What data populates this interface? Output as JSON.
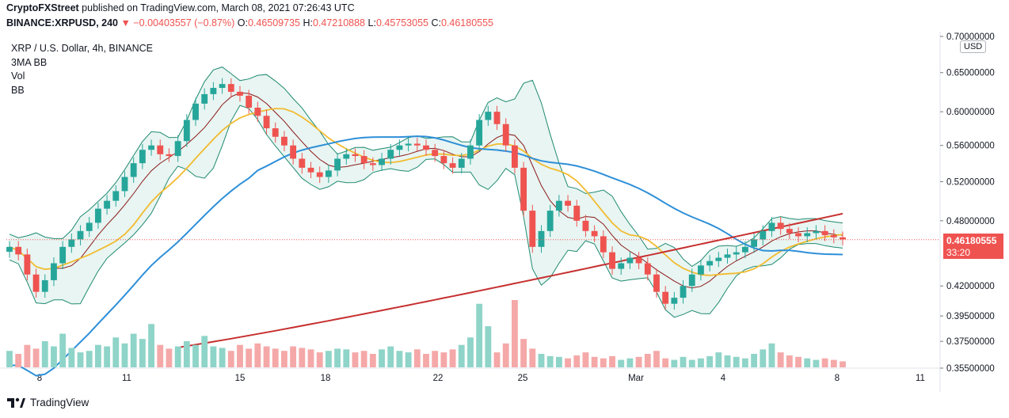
{
  "header": {
    "author": "CryptoFXStreet",
    "published_text": "published on TradingView.com, March 08, 2021 07:26:43 UTC",
    "symbol": "BINANCE:XRPUSD, 240",
    "change_arrow": "▼",
    "change": "−0.00403557 (−0.87%)",
    "o_label": "O:",
    "o_value": "0.46509735",
    "h_label": "H:",
    "h_value": "0.47210888",
    "l_label": "L:",
    "l_value": "0.45753055",
    "c_label": "C:",
    "c_value": "0.46180555"
  },
  "legend": {
    "title": "XRP / U.S. Dollar, 4h, BINANCE",
    "items": [
      "3MA BB",
      "Vol",
      "BB"
    ]
  },
  "price_axis": {
    "currency_button": "USD",
    "last_price": "0.46180555",
    "countdown": "33:20"
  },
  "branding": {
    "name": "TradingView"
  },
  "colors": {
    "up": "#26a69a",
    "down": "#ef5350",
    "bb_basis": "#8b1a1a",
    "bb_bands": "#1f8a70",
    "bb_fill": "#e8f5f2",
    "ma_yellow": "#f2bb30",
    "ma_blue": "#2e8fd8",
    "ma_red": "#c62f2f",
    "vol_up": "#8fd4c8",
    "vol_down": "#f5a8a8"
  },
  "chart_data": {
    "type": "candlestick",
    "title": "XRP / U.S. Dollar, 4h, BINANCE",
    "x_tick_labels": [
      "8",
      "11",
      "15",
      "18",
      "22",
      "25",
      "Mar",
      "4",
      "8",
      "11"
    ],
    "y_tick_labels": [
      "0.70000000",
      "0.65000000",
      "0.60000000",
      "0.56000000",
      "0.52000000",
      "0.48000000",
      "0.42000000",
      "0.39500000",
      "0.37500000",
      "0.35500000"
    ],
    "y_scale": "log",
    "y_axis_labels": [
      {
        "label": "0.70000000",
        "value": 0.7
      },
      {
        "label": "0.65000000",
        "value": 0.65
      },
      {
        "label": "0.60000000",
        "value": 0.6
      },
      {
        "label": "0.56000000",
        "value": 0.56
      },
      {
        "label": "0.52000000",
        "value": 0.52
      },
      {
        "label": "0.48000000",
        "value": 0.48
      },
      {
        "label": "0.42000000",
        "value": 0.42
      },
      {
        "label": "0.39500000",
        "value": 0.395
      },
      {
        "label": "0.37500000",
        "value": 0.375
      },
      {
        "label": "0.35500000",
        "value": 0.355
      }
    ],
    "last_price": 0.4618,
    "close_series_approx": [
      0.455,
      0.448,
      0.43,
      0.415,
      0.425,
      0.44,
      0.455,
      0.462,
      0.47,
      0.478,
      0.492,
      0.5,
      0.51,
      0.525,
      0.54,
      0.555,
      0.56,
      0.55,
      0.548,
      0.565,
      0.59,
      0.61,
      0.622,
      0.63,
      0.635,
      0.625,
      0.62,
      0.605,
      0.595,
      0.58,
      0.57,
      0.56,
      0.545,
      0.535,
      0.53,
      0.525,
      0.532,
      0.545,
      0.55,
      0.548,
      0.54,
      0.538,
      0.545,
      0.555,
      0.56,
      0.562,
      0.56,
      0.555,
      0.548,
      0.54,
      0.535,
      0.545,
      0.56,
      0.59,
      0.6,
      0.585,
      0.56,
      0.535,
      0.49,
      0.455,
      0.47,
      0.49,
      0.5,
      0.495,
      0.48,
      0.47,
      0.465,
      0.45,
      0.435,
      0.44,
      0.445,
      0.44,
      0.43,
      0.415,
      0.405,
      0.41,
      0.42,
      0.43,
      0.438,
      0.442,
      0.445,
      0.448,
      0.45,
      0.455,
      0.462,
      0.47,
      0.478,
      0.472,
      0.468,
      0.465,
      0.468,
      0.47,
      0.466,
      0.464,
      0.462
    ],
    "volume_series_approx": [
      22,
      18,
      30,
      25,
      35,
      28,
      45,
      26,
      20,
      22,
      30,
      28,
      40,
      32,
      45,
      38,
      58,
      30,
      25,
      28,
      35,
      30,
      42,
      28,
      26,
      22,
      30,
      25,
      32,
      28,
      25,
      22,
      28,
      26,
      24,
      20,
      22,
      25,
      24,
      20,
      22,
      18,
      24,
      28,
      22,
      20,
      24,
      18,
      22,
      20,
      24,
      30,
      40,
      85,
      55,
      20,
      32,
      90,
      38,
      25,
      18,
      15,
      14,
      12,
      16,
      20,
      14,
      12,
      15,
      10,
      12,
      14,
      18,
      22,
      12,
      10,
      14,
      10,
      12,
      15,
      20,
      16,
      14,
      12,
      18,
      24,
      32,
      20,
      16,
      14,
      12,
      10,
      12,
      10,
      8
    ],
    "indicators": [
      "3MA BB",
      "Vol",
      "BB"
    ]
  }
}
